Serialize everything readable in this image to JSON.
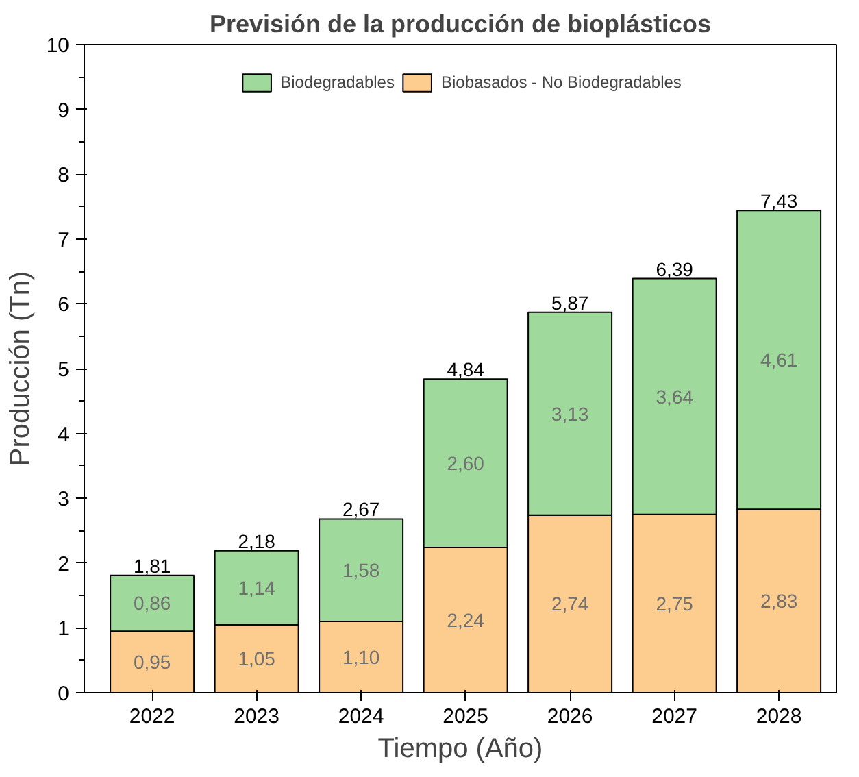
{
  "chart_data": {
    "type": "bar",
    "title": "Previsión de la producción de bioplásticos",
    "xlabel": "Tiempo (Año)",
    "ylabel": "Producción (Tn)",
    "categories": [
      "2022",
      "2023",
      "2024",
      "2025",
      "2026",
      "2027",
      "2028"
    ],
    "stacked": true,
    "ylim": [
      0,
      10
    ],
    "yticks": [
      0,
      1,
      2,
      3,
      4,
      5,
      6,
      7,
      8,
      9,
      10
    ],
    "grid": false,
    "legend": "top",
    "series": [
      {
        "name": "Biobasados - No Biodegradables",
        "color": "#fdcc8f",
        "values": [
          0.95,
          1.05,
          1.1,
          2.24,
          2.74,
          2.75,
          2.83
        ],
        "value_labels": [
          "0,95",
          "1,05",
          "1,10",
          "2,24",
          "2,74",
          "2,75",
          "2,83"
        ]
      },
      {
        "name": "Biodegradables",
        "color": "#9fd99b",
        "values": [
          0.86,
          1.14,
          1.58,
          2.6,
          3.13,
          3.64,
          4.61
        ],
        "value_labels": [
          "0,86",
          "1,14",
          "1,58",
          "2,60",
          "3,13",
          "3,64",
          "4,61"
        ]
      }
    ],
    "totals": [
      "1,81",
      "2,18",
      "2,67",
      "4,84",
      "5,87",
      "6,39",
      "7,43"
    ]
  }
}
